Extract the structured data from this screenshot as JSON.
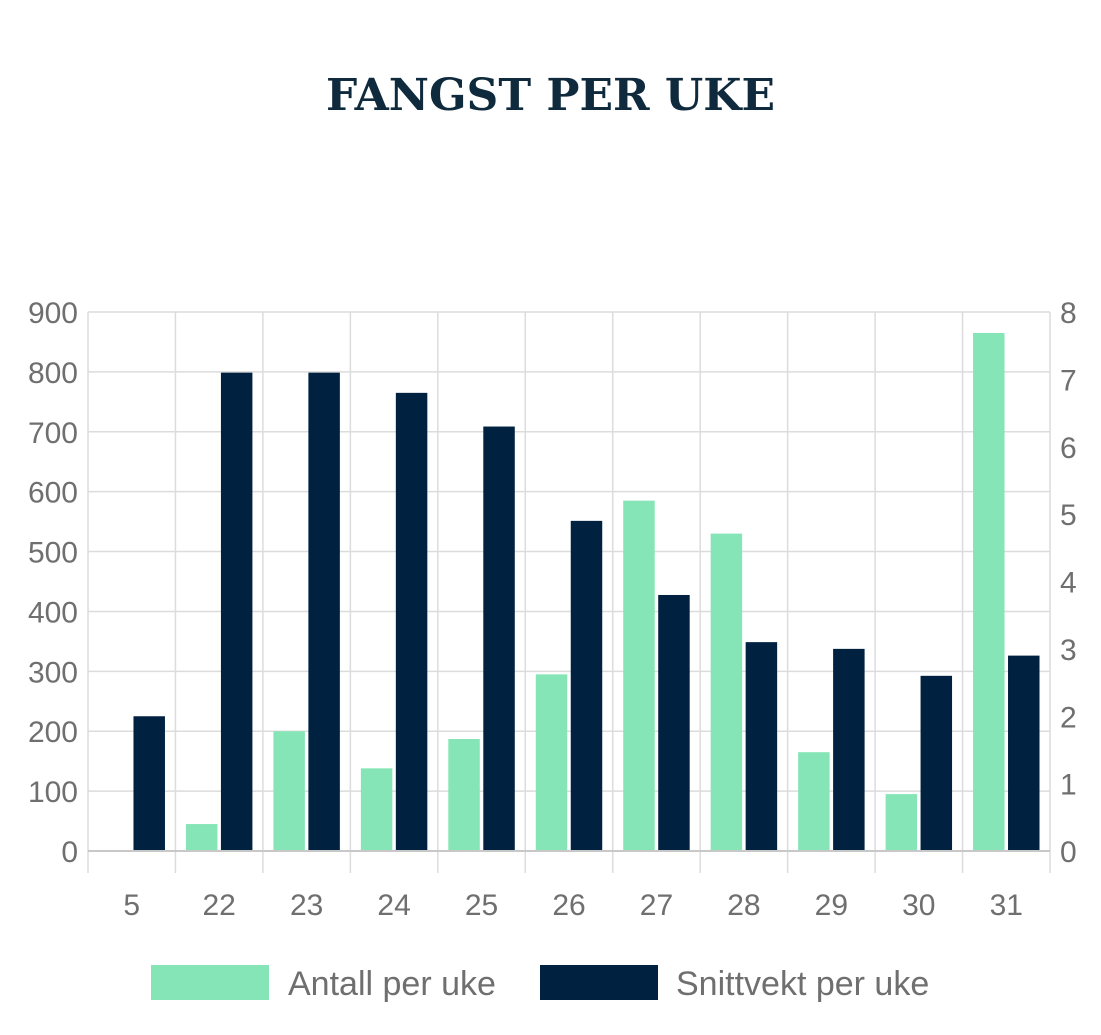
{
  "title": "FANGST PER UKE",
  "chart_data": {
    "type": "bar",
    "title": "FANGST PER UKE",
    "categories": [
      "5",
      "22",
      "23",
      "24",
      "25",
      "26",
      "27",
      "28",
      "29",
      "30",
      "31"
    ],
    "series": [
      {
        "name": "Antall per uke",
        "axis": "left",
        "color": "#86e5b7",
        "values": [
          0,
          45,
          200,
          138,
          187,
          295,
          585,
          530,
          165,
          95,
          865
        ]
      },
      {
        "name": "Snittvekt per uke",
        "axis": "right",
        "color": "#002140",
        "values": [
          2.0,
          7.1,
          7.1,
          6.8,
          6.3,
          4.9,
          3.8,
          3.1,
          3.0,
          2.6,
          2.9
        ]
      }
    ],
    "y_left": {
      "ylim": [
        0,
        900
      ],
      "ticks": [
        "0",
        "100",
        "200",
        "300",
        "400",
        "500",
        "600",
        "700",
        "800",
        "900"
      ]
    },
    "y_right": {
      "ylim": [
        0,
        8
      ],
      "ticks": [
        "0",
        "1",
        "2",
        "3",
        "4",
        "5",
        "6",
        "7",
        "8"
      ]
    },
    "grid": true,
    "legend": "bottom"
  }
}
